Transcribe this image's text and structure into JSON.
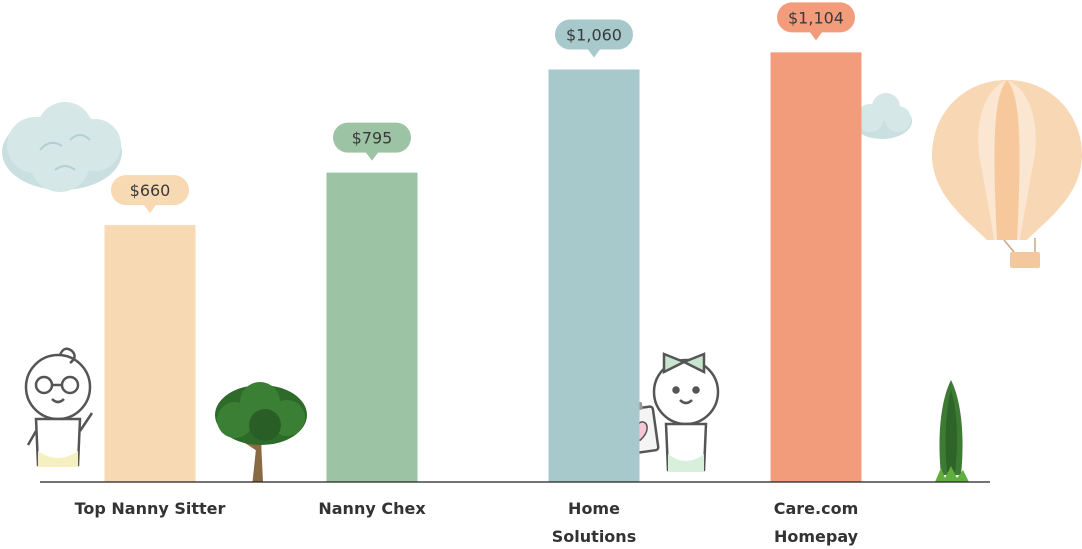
{
  "chart_data": {
    "type": "bar",
    "categories": [
      "Top Nanny Sitter",
      "Nanny Chex",
      "Home Solutions",
      "Care.com Homepay"
    ],
    "category_lines": [
      [
        "Top Nanny Sitter"
      ],
      [
        "Nanny Chex"
      ],
      [
        "Home",
        "Solutions"
      ],
      [
        "Care.com",
        "Homepay"
      ]
    ],
    "values": [
      660,
      795,
      1060,
      1104
    ],
    "value_labels": [
      "$660",
      "$795",
      "$1,060",
      "$1,104"
    ],
    "ylim": [
      0,
      1110
    ],
    "grid": false,
    "legend": "none",
    "colors": [
      "#f7d9b3",
      "#9dc3a5",
      "#a8c9cc",
      "#f29c7c"
    ],
    "callout_colors": [
      "#f7d9b3",
      "#9dc3a5",
      "#a8c9cc",
      "#f29c7c"
    ]
  },
  "decorations": {
    "icons": [
      "cloud-icon",
      "cloud-icon",
      "hot-air-balloon-icon",
      "tree-icon",
      "cypress-tree-icon",
      "baby-boy-icon",
      "baby-girl-icon",
      "clipboard-heart-icon"
    ]
  }
}
